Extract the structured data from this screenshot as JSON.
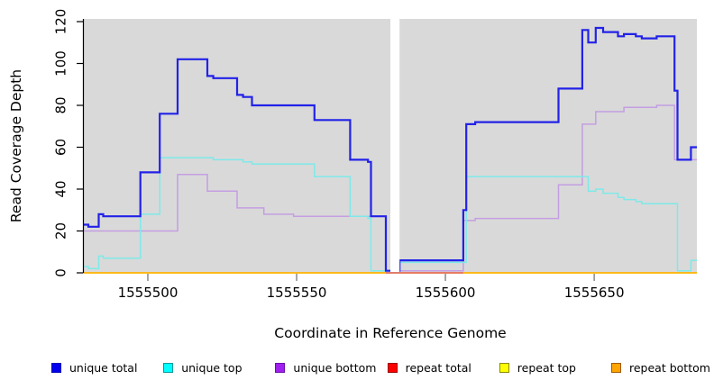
{
  "y_axis": {
    "label": "Read Coverage Depth",
    "ticks": [
      0,
      20,
      40,
      60,
      80,
      100,
      120
    ],
    "range": [
      0,
      120
    ]
  },
  "x_axis": {
    "label": "Coordinate in Reference Genome",
    "ticks": [
      1555500,
      1555550,
      1555600,
      1555650
    ],
    "range": [
      1555478.5,
      1555684.5
    ]
  },
  "panel": {
    "bg_color": "#d9d9d9",
    "gap_band": {
      "from": 1555581.5,
      "to": 1555584.6,
      "color": "#ffffff"
    }
  },
  "chart_data": {
    "type": "line",
    "subtype": "step-after",
    "x_range": [
      1555478.5,
      1555684.5
    ],
    "y_range": [
      0,
      120
    ],
    "series": [
      {
        "name": "repeat top",
        "color": "#ffff00",
        "line_width": 1.5,
        "draw_over_gap": false,
        "end": 1555684.5,
        "points": [
          [
            1555478.5,
            0
          ]
        ]
      },
      {
        "name": "unique bottom",
        "color": "#c49ee2",
        "line_width": 1.5,
        "draw_over_gap": false,
        "end": 1555684.5,
        "points": [
          [
            1555478.5,
            20
          ],
          [
            1555510,
            47
          ],
          [
            1555520,
            39
          ],
          [
            1555530,
            31
          ],
          [
            1555539,
            28
          ],
          [
            1555549,
            27
          ],
          [
            1555580,
            1
          ],
          [
            1555606,
            25
          ],
          [
            1555610,
            26
          ],
          [
            1555638,
            42
          ],
          [
            1555646,
            71
          ],
          [
            1555650.5,
            77
          ],
          [
            1555660,
            79
          ],
          [
            1555671,
            80
          ],
          [
            1555677,
            54
          ]
        ]
      },
      {
        "name": "unique top",
        "color": "#7fe9e9",
        "line_width": 1.5,
        "draw_over_gap": false,
        "end": 1555684.5,
        "points": [
          [
            1555478.5,
            3
          ],
          [
            1555480,
            2
          ],
          [
            1555483.5,
            8
          ],
          [
            1555485,
            7
          ],
          [
            1555497.5,
            28
          ],
          [
            1555504,
            55
          ],
          [
            1555522,
            54
          ],
          [
            1555532,
            53
          ],
          [
            1555535,
            52
          ],
          [
            1555556,
            46
          ],
          [
            1555568,
            27
          ],
          [
            1555574,
            26
          ],
          [
            1555575,
            1
          ],
          [
            1555580,
            0
          ],
          [
            1555584.6,
            5
          ],
          [
            1555607,
            46
          ],
          [
            1555648,
            39
          ],
          [
            1555650.5,
            40
          ],
          [
            1555653,
            38
          ],
          [
            1555658,
            36
          ],
          [
            1555660,
            35
          ],
          [
            1555664,
            34
          ],
          [
            1555666,
            33
          ],
          [
            1555678,
            1
          ],
          [
            1555682.5,
            6
          ]
        ]
      },
      {
        "name": "unique total",
        "color": "#2222e8",
        "line_width": 2.2,
        "draw_over_gap": false,
        "end": 1555684.5,
        "points": [
          [
            1555478.5,
            23
          ],
          [
            1555480,
            22
          ],
          [
            1555483.5,
            28
          ],
          [
            1555485,
            27
          ],
          [
            1555497.5,
            48
          ],
          [
            1555504,
            76
          ],
          [
            1555510,
            102
          ],
          [
            1555520,
            94
          ],
          [
            1555522,
            93
          ],
          [
            1555530,
            85
          ],
          [
            1555532,
            84
          ],
          [
            1555535,
            80
          ],
          [
            1555556,
            73
          ],
          [
            1555568,
            54
          ],
          [
            1555574,
            53
          ],
          [
            1555575,
            27
          ],
          [
            1555580,
            1
          ],
          [
            1555584.6,
            6
          ],
          [
            1555606,
            30
          ],
          [
            1555607,
            71
          ],
          [
            1555610,
            72
          ],
          [
            1555638,
            88
          ],
          [
            1555646,
            116
          ],
          [
            1555648,
            110
          ],
          [
            1555650.5,
            117
          ],
          [
            1555653,
            115
          ],
          [
            1555658,
            113
          ],
          [
            1555660,
            114
          ],
          [
            1555664,
            113
          ],
          [
            1555666,
            112
          ],
          [
            1555671,
            113
          ],
          [
            1555677,
            87
          ],
          [
            1555678,
            54
          ],
          [
            1555682.5,
            60
          ]
        ]
      },
      {
        "name": "repeat bottom",
        "color": "#ffa500",
        "line_width": 1.6,
        "draw_over_gap": true,
        "end": 1555684.5,
        "points": [
          [
            1555478.5,
            0
          ]
        ]
      },
      {
        "name": "repeat total",
        "color": "#e06373",
        "line_width": 1.5,
        "draw_over_gap": true,
        "end": 1555606,
        "points": [
          [
            1555580,
            0
          ]
        ]
      }
    ],
    "legend": [
      {
        "label": "unique total",
        "fill": "#0000ee",
        "border": "#0000b8"
      },
      {
        "label": "unique top",
        "fill": "#00ffff",
        "border": "#009a9a"
      },
      {
        "label": "unique bottom",
        "fill": "#a020f0",
        "border": "#6a0dad"
      },
      {
        "label": "repeat total",
        "fill": "#ff0000",
        "border": "#990000"
      },
      {
        "label": "repeat top",
        "fill": "#ffff00",
        "border": "#8b8b00"
      },
      {
        "label": "repeat bottom",
        "fill": "#ffa500",
        "border": "#a05a00"
      }
    ]
  }
}
